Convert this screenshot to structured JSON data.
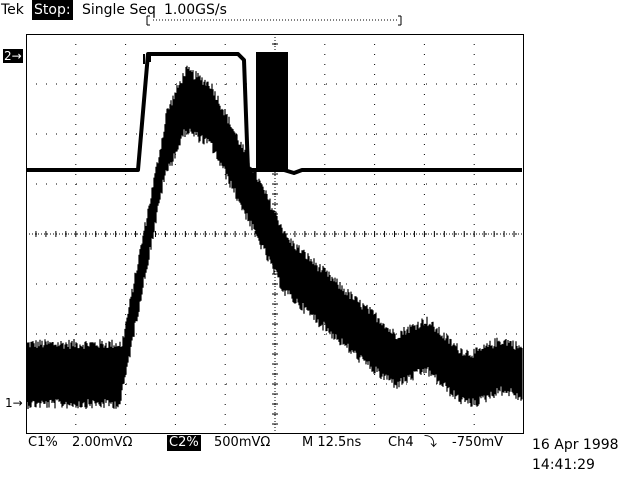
{
  "status": {
    "brand": "Tek",
    "acq_state": "Stop:",
    "acq_mode": "Single Seq",
    "sample_rate": "1.00GS/s"
  },
  "markers": {
    "ch2": "2→",
    "ch1": "1→"
  },
  "readout": {
    "ch1_label": "C1%",
    "ch1_scale": "2.00mVΩ",
    "ch2_label": "C2%",
    "ch2_scale": "500mVΩ",
    "timebase": "M 12.5ns",
    "trigger_source": "Ch4",
    "trigger_slope": "⤵",
    "trigger_level": "-750mV"
  },
  "timestamp": {
    "date": "16 Apr 1998",
    "time": "14:41:29"
  }
}
